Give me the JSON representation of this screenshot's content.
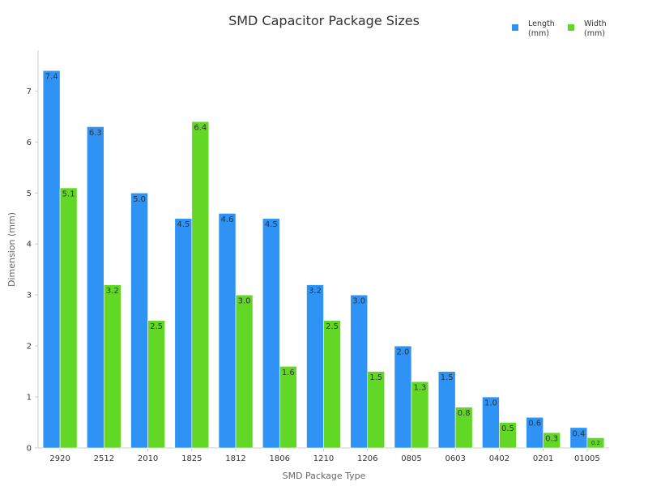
{
  "chart_data": {
    "type": "bar",
    "title": "SMD Capacitor Package Sizes",
    "xlabel": "SMD Package Type",
    "ylabel": "Dimension (mm)",
    "ylim": [
      0,
      7.8
    ],
    "yticks": [
      0,
      1,
      2,
      3,
      4,
      5,
      6,
      7
    ],
    "grid": false,
    "legend_position": "top-right",
    "categories": [
      "2920",
      "2512",
      "2010",
      "1825",
      "1812",
      "1806",
      "1210",
      "1206",
      "0805",
      "0603",
      "0402",
      "0201",
      "01005"
    ],
    "series": [
      {
        "name": "Length (mm)",
        "legend_lines": [
          "Length",
          "(mm)"
        ],
        "color": "#2E93F5",
        "values": [
          7.4,
          6.3,
          5.0,
          4.5,
          4.6,
          4.5,
          3.2,
          3.0,
          2.0,
          1.5,
          1.0,
          0.6,
          0.4
        ],
        "labels": [
          "7.4",
          "6.3",
          "5.0",
          "4.5",
          "4.6",
          "4.5",
          "3.2",
          "3.0",
          "2.0",
          "1.5",
          "1.0",
          "0.6",
          "0.4"
        ]
      },
      {
        "name": "Width (mm)",
        "legend_lines": [
          "Width",
          "(mm)"
        ],
        "color": "#62D726",
        "values": [
          5.1,
          3.2,
          2.5,
          6.4,
          3.0,
          1.6,
          2.5,
          1.5,
          1.3,
          0.8,
          0.5,
          0.3,
          0.2
        ],
        "labels": [
          "5.1",
          "3.2",
          "2.5",
          "6.4",
          "3.0",
          "1.6",
          "2.5",
          "1.5",
          "1.3",
          "0.8",
          "0.5",
          "0.3",
          "0.2"
        ]
      }
    ]
  }
}
